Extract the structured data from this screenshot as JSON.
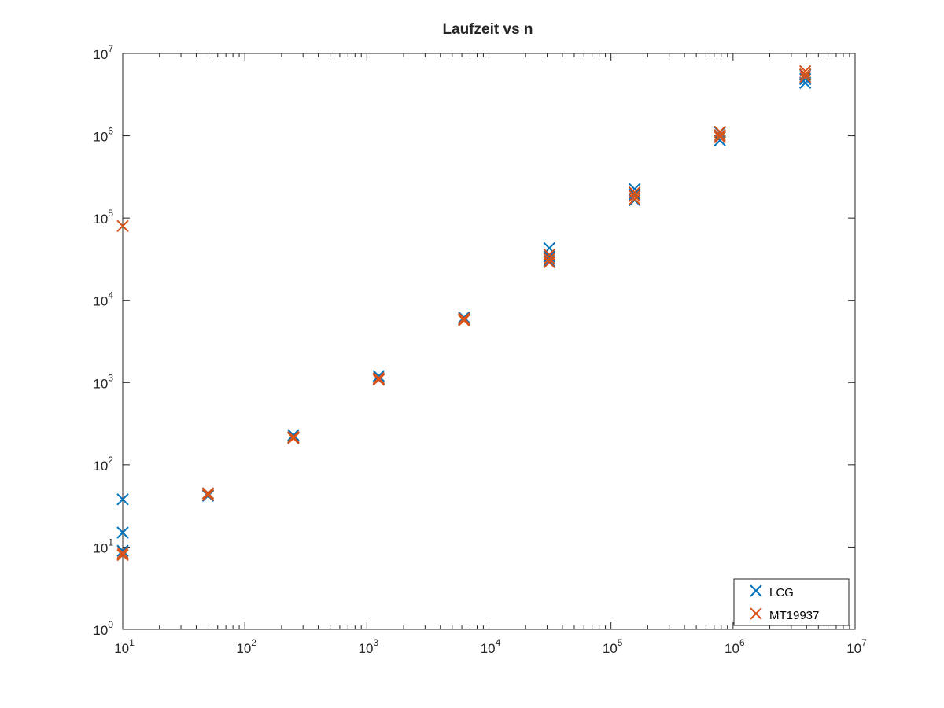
{
  "chart_data": {
    "type": "scatter",
    "title": "Laufzeit vs n",
    "xlabel": "",
    "ylabel": "",
    "xscale": "log",
    "yscale": "log",
    "xlim": [
      10,
      10000000
    ],
    "ylim": [
      1,
      10000000
    ],
    "xticks": [
      10,
      100,
      1000,
      10000,
      100000,
      1000000,
      10000000
    ],
    "yticks": [
      1,
      10,
      100,
      1000,
      10000,
      100000,
      1000000,
      10000000
    ],
    "xtick_labels": [
      {
        "base": "10",
        "exp": "1"
      },
      {
        "base": "10",
        "exp": "2"
      },
      {
        "base": "10",
        "exp": "3"
      },
      {
        "base": "10",
        "exp": "4"
      },
      {
        "base": "10",
        "exp": "5"
      },
      {
        "base": "10",
        "exp": "6"
      },
      {
        "base": "10",
        "exp": "7"
      }
    ],
    "ytick_labels": [
      {
        "base": "10",
        "exp": "0"
      },
      {
        "base": "10",
        "exp": "1"
      },
      {
        "base": "10",
        "exp": "2"
      },
      {
        "base": "10",
        "exp": "3"
      },
      {
        "base": "10",
        "exp": "4"
      },
      {
        "base": "10",
        "exp": "5"
      },
      {
        "base": "10",
        "exp": "6"
      },
      {
        "base": "10",
        "exp": "7"
      }
    ],
    "grid": false,
    "marker": "x",
    "legend_position": "bottom-right",
    "series": [
      {
        "name": "LCG",
        "color": "#0072bd",
        "points": [
          [
            10,
            38
          ],
          [
            10,
            15
          ],
          [
            10,
            9
          ],
          [
            50,
            45
          ],
          [
            50,
            42
          ],
          [
            250,
            230
          ],
          [
            250,
            215
          ],
          [
            1250,
            1200
          ],
          [
            1250,
            1100
          ],
          [
            6250,
            6200
          ],
          [
            6250,
            5900
          ],
          [
            31250,
            43000
          ],
          [
            31250,
            34000
          ],
          [
            31250,
            30000
          ],
          [
            156250,
            225000
          ],
          [
            156250,
            195000
          ],
          [
            156250,
            165000
          ],
          [
            781250,
            1100000
          ],
          [
            781250,
            970000
          ],
          [
            781250,
            880000
          ],
          [
            3906250,
            5500000
          ],
          [
            3906250,
            4900000
          ],
          [
            3906250,
            4400000
          ]
        ]
      },
      {
        "name": "MT19937",
        "color": "#d95319",
        "points": [
          [
            10,
            80000
          ],
          [
            10,
            8.5
          ],
          [
            10,
            8
          ],
          [
            50,
            45
          ],
          [
            50,
            43
          ],
          [
            250,
            218
          ],
          [
            250,
            210
          ],
          [
            1250,
            1130
          ],
          [
            1250,
            1080
          ],
          [
            6250,
            6000
          ],
          [
            6250,
            5700
          ],
          [
            31250,
            36000
          ],
          [
            31250,
            32000
          ],
          [
            31250,
            29000
          ],
          [
            156250,
            205000
          ],
          [
            156250,
            185000
          ],
          [
            156250,
            170000
          ],
          [
            781250,
            1120000
          ],
          [
            781250,
            1020000
          ],
          [
            781250,
            960000
          ],
          [
            3906250,
            6100000
          ],
          [
            3906250,
            5600000
          ],
          [
            3906250,
            5200000
          ]
        ]
      }
    ]
  }
}
